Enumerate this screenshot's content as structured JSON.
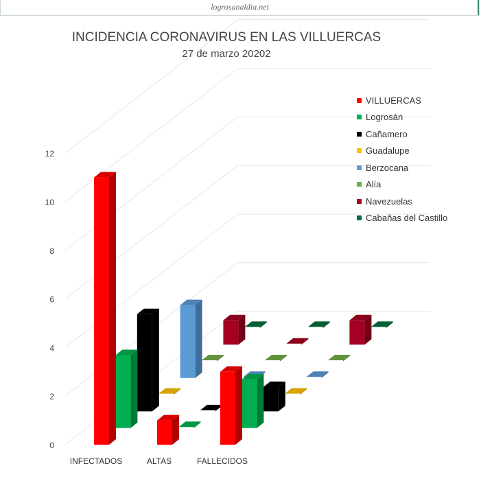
{
  "source": "logrosanaldia.net",
  "chart_data": {
    "type": "bar",
    "style": "3d-clustered-column",
    "title": "INCIDENCIA CORONAVIRUS EN LAS VILLUERCAS",
    "subtitle": "27 de marzo 20202",
    "categories": [
      "INFECTADOS",
      "ALTAS",
      "FALLECIDOS"
    ],
    "ylim": [
      0,
      12
    ],
    "yticks": [
      0,
      2,
      4,
      6,
      8,
      10,
      12
    ],
    "grid": true,
    "legend_position": "right",
    "series": [
      {
        "name": "VILLUERCAS",
        "color": "#ff0000",
        "values": [
          11,
          1,
          3
        ]
      },
      {
        "name": "Logrosán",
        "color": "#00b050",
        "values": [
          3,
          0,
          2
        ]
      },
      {
        "name": "Cañamero",
        "color": "#000000",
        "values": [
          4,
          0,
          1
        ]
      },
      {
        "name": "Guadalupe",
        "color": "#ffc000",
        "values": [
          0,
          0,
          0
        ]
      },
      {
        "name": "Berzocana",
        "color": "#5b9bd5",
        "values": [
          3,
          0,
          0
        ]
      },
      {
        "name": "Alía",
        "color": "#70ad47",
        "values": [
          0,
          0,
          0
        ]
      },
      {
        "name": "Navezuelas",
        "color": "#a50021",
        "values": [
          1,
          0,
          1
        ]
      },
      {
        "name": "Cabañas del Castillo",
        "color": "#00703c",
        "values": [
          0,
          0,
          0
        ]
      }
    ]
  }
}
